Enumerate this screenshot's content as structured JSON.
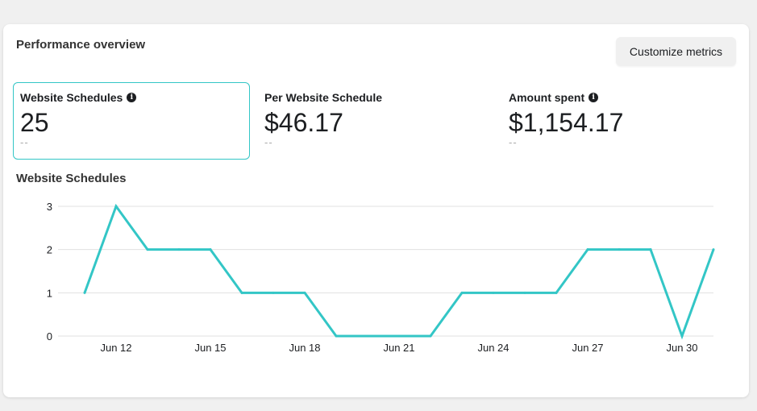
{
  "card": {
    "title": "Performance overview",
    "customize_label": "Customize metrics"
  },
  "metrics": [
    {
      "label": "Website Schedules",
      "value": "25",
      "compare": "--",
      "info": true,
      "selected": true
    },
    {
      "label": "Per Website Schedule",
      "value": "$46.17",
      "compare": "--",
      "info": false,
      "selected": false
    },
    {
      "label": "Amount spent",
      "value": "$1,154.17",
      "compare": "--",
      "info": true,
      "selected": false
    }
  ],
  "colors": {
    "accent": "#33c6c6",
    "grid": "#e0e0e0"
  },
  "chart_data": {
    "type": "line",
    "title": "Website Schedules",
    "xlabel": "",
    "ylabel": "",
    "x": [
      "Jun 11",
      "Jun 12",
      "Jun 13",
      "Jun 14",
      "Jun 15",
      "Jun 16",
      "Jun 17",
      "Jun 18",
      "Jun 19",
      "Jun 20",
      "Jun 21",
      "Jun 22",
      "Jun 23",
      "Jun 24",
      "Jun 25",
      "Jun 26",
      "Jun 27",
      "Jun 28",
      "Jun 29",
      "Jun 30",
      "Jul 1"
    ],
    "x_tick_labels": [
      "Jun 12",
      "Jun 15",
      "Jun 18",
      "Jun 21",
      "Jun 24",
      "Jun 27",
      "Jun 30"
    ],
    "y_ticks": [
      "0",
      "1",
      "2",
      "3"
    ],
    "ylim": [
      0,
      3
    ],
    "grid": true,
    "series": [
      {
        "values": [
          1,
          3,
          2,
          2,
          2,
          1,
          1,
          1,
          0,
          0,
          0,
          0,
          1,
          1,
          1,
          1,
          2,
          2,
          2,
          0,
          2
        ]
      }
    ]
  }
}
